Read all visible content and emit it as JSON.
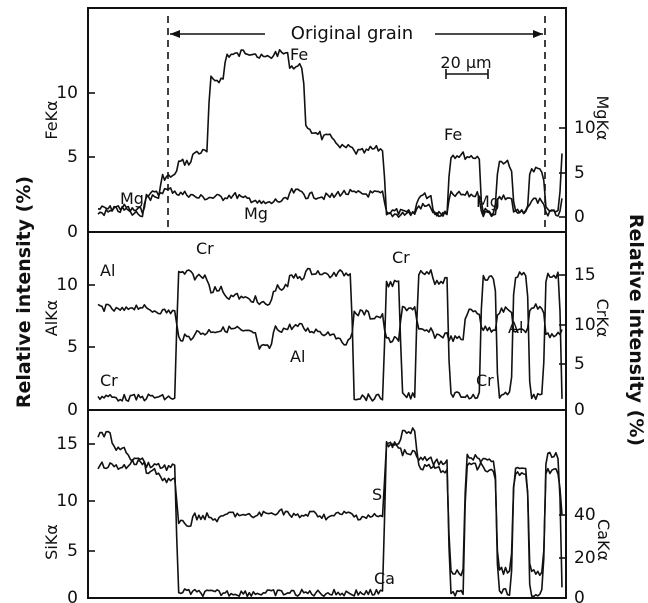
{
  "figure": {
    "header": "Original grain",
    "scale_bar": "20 µm",
    "left_main_label": "Relative intensity (%)",
    "right_main_label": "Relative intensity (%)"
  },
  "chart_data": [
    {
      "type": "line",
      "panel": "top",
      "left_axis_label": "FeKα",
      "right_axis_label": "MgKα",
      "left_ticks": [
        "0",
        "5",
        "10"
      ],
      "right_ticks": [
        "0",
        "5",
        "10"
      ],
      "ylim_left": [
        0,
        15
      ],
      "series": [
        {
          "name": "Fe",
          "axis": "left",
          "values": [
            1.6,
            1.7,
            1.5,
            2.4,
            3.8,
            4.8,
            5.5,
            10.5,
            12.2,
            12.4,
            12.0,
            12.3,
            11.4,
            6.9,
            6.5,
            5.8,
            5.5,
            5.7,
            1.4,
            1.3,
            2.5,
            1.3,
            5.3,
            5.2,
            1.4,
            4.7,
            1.4,
            4.3,
            1.4,
            5.2
          ]
        },
        {
          "name": "Mg",
          "axis": "right",
          "values": [
            0.5,
            0.8,
            0.4,
            2.6,
            3.0,
            2.6,
            2.2,
            2.2,
            2.4,
            2.0,
            1.5,
            1.8,
            2.8,
            2.4,
            2.3,
            2.7,
            2.6,
            2.6,
            0.3,
            0.4,
            1.2,
            0.3,
            2.5,
            2.5,
            0.4,
            2.2,
            0.4,
            1.9,
            0.4,
            1.7
          ]
        }
      ],
      "annotations": [
        "Fe",
        "Fe",
        "Mg",
        "Mg",
        "Mg"
      ]
    },
    {
      "type": "line",
      "panel": "middle",
      "left_axis_label": "AlKα",
      "right_axis_label": "CrKα",
      "left_ticks": [
        "0",
        "5",
        "10"
      ],
      "right_ticks": [
        "0",
        "5",
        "10",
        "15"
      ],
      "ylim_left": [
        0,
        13
      ],
      "series": [
        {
          "name": "Al",
          "axis": "left",
          "values": [
            8.2,
            8.0,
            8.3,
            8.0,
            7.9,
            5.8,
            6.2,
            6.4,
            6.5,
            6.2,
            5.0,
            6.5,
            6.7,
            6.4,
            6.2,
            5.5,
            7.8,
            7.5,
            5.6,
            8.2,
            6.3,
            6.0,
            5.7,
            7.9,
            6.5,
            8.0,
            6.3,
            8.3,
            6.0,
            6.7
          ]
        },
        {
          "name": "Cr",
          "axis": "right",
          "values": [
            0.7,
            0.6,
            0.6,
            0.7,
            0.6,
            15.2,
            14.8,
            13.3,
            12.5,
            12.2,
            11.6,
            13.5,
            14.8,
            15.4,
            15.0,
            15.2,
            0.7,
            0.6,
            14.0,
            0.8,
            15.4,
            14.3,
            0.9,
            0.8,
            14.6,
            0.9,
            15.0,
            0.8,
            15.0,
            0.8
          ]
        }
      ],
      "annotations": [
        "Al",
        "Cr",
        "Cr",
        "Al",
        "Al",
        "Cr",
        "Cr"
      ]
    },
    {
      "type": "line",
      "panel": "bottom",
      "left_axis_label": "SiKα",
      "right_axis_label": "CaKα",
      "left_ticks": [
        "0",
        "5",
        "10",
        "15"
      ],
      "right_ticks": [
        "0",
        "20",
        "40"
      ],
      "ylim_left": [
        0,
        18
      ],
      "series": [
        {
          "name": "Si",
          "axis": "left",
          "values": [
            13.1,
            13.0,
            13.4,
            13.2,
            12.9,
            0.6,
            0.5,
            0.5,
            0.5,
            0.5,
            0.5,
            0.5,
            0.5,
            0.5,
            0.5,
            0.5,
            0.5,
            0.5,
            15.3,
            16.6,
            12.9,
            13.4,
            0.5,
            13.0,
            13.6,
            0.6,
            12.6,
            0.5,
            14.1,
            0.7
          ]
        },
        {
          "name": "Ca",
          "axis": "right",
          "values": [
            6.6,
            6.0,
            5.6,
            5.1,
            4.8,
            3.0,
            3.3,
            3.2,
            3.4,
            3.3,
            3.4,
            3.5,
            3.3,
            3.4,
            3.3,
            3.4,
            3.3,
            3.3,
            6.2,
            5.9,
            5.6,
            5.2,
            1.0,
            5.7,
            5.2,
            1.1,
            5.0,
            1.0,
            5.1,
            3.3
          ]
        }
      ],
      "annotations": [
        "Si",
        "Ca"
      ]
    }
  ]
}
